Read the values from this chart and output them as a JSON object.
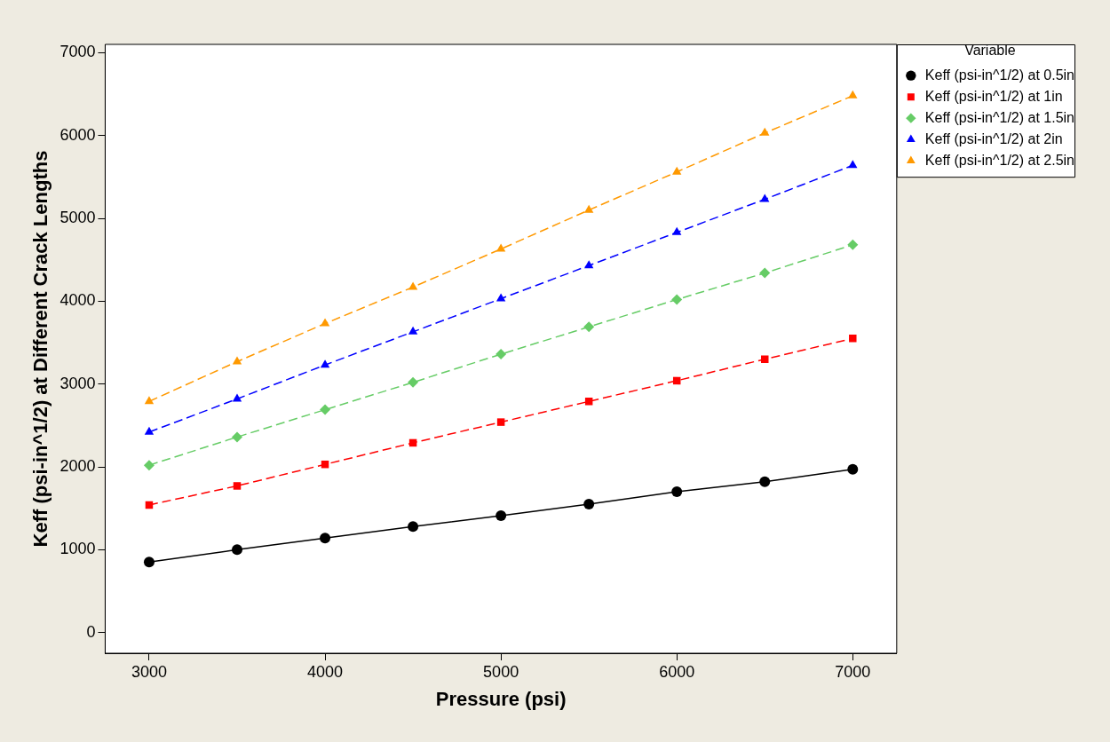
{
  "chart_data": {
    "type": "line",
    "xlabel": "Pressure (psi)",
    "ylabel": "Keff (psi-in^1/2) at Different Crack Lengths",
    "legend_title": "Variable",
    "legend": "right",
    "x": [
      3000,
      3500,
      4000,
      4500,
      5000,
      5500,
      6000,
      6500,
      7000
    ],
    "xlim": [
      2750,
      7250
    ],
    "xticks": [
      3000,
      4000,
      5000,
      6000,
      7000
    ],
    "ylim": [
      -250,
      7100
    ],
    "yticks": [
      0,
      1000,
      2000,
      3000,
      4000,
      5000,
      6000,
      7000
    ],
    "grid": false,
    "series": [
      {
        "name": "Keff (psi-in^1/2) at 0.5in",
        "color": "#000000",
        "marker": "circle",
        "line_style": "solid",
        "values": [
          850,
          1000,
          1140,
          1280,
          1410,
          1550,
          1700,
          1820,
          1970
        ]
      },
      {
        "name": "Keff (psi-in^1/2) at 1in",
        "color": "#ff0000",
        "marker": "square",
        "line_style": "dashed",
        "values": [
          1540,
          1770,
          2030,
          2290,
          2540,
          2790,
          3040,
          3300,
          3550
        ]
      },
      {
        "name": "Keff (psi-in^1/2) at 1.5in",
        "color": "#66cc66",
        "marker": "diamond",
        "line_style": "dashed",
        "values": [
          2020,
          2360,
          2690,
          3020,
          3360,
          3690,
          4020,
          4340,
          4680
        ]
      },
      {
        "name": "Keff (psi-in^1/2) at 2in",
        "color": "#0000ff",
        "marker": "triangle",
        "line_style": "dashed",
        "values": [
          2420,
          2820,
          3230,
          3630,
          4030,
          4430,
          4830,
          5230,
          5640
        ]
      },
      {
        "name": "Keff (psi-in^1/2) at 2.5in",
        "color": "#ff9900",
        "marker": "triangle",
        "line_style": "dashed",
        "values": [
          2790,
          3270,
          3730,
          4170,
          4630,
          5100,
          5560,
          6030,
          6480
        ]
      }
    ]
  }
}
